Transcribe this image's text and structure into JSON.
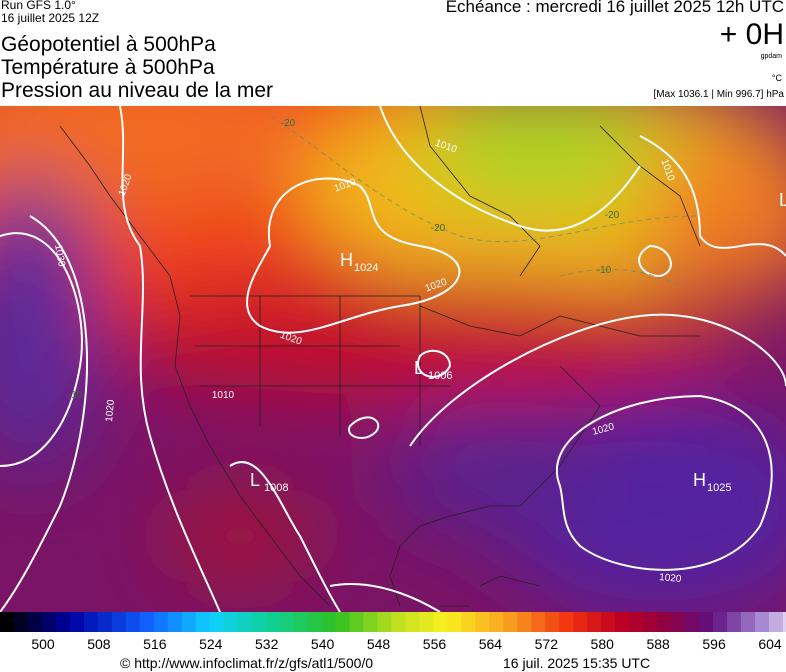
{
  "header": {
    "run": "Run GFS 1.0°",
    "date": "16 juillet 2025 12Z",
    "echeance": "Echéance : mercredi 16 juillet 2025 12h UTC",
    "lead": "+ 0H",
    "unit_geo": "gpdam",
    "unit_temp": "°C",
    "pressure_range": "[Max 1036.1 | Min 996.7] hPa"
  },
  "titles": [
    "Géopotentiel à 500hPa",
    "Température à 500hPa",
    "Pression au niveau de la mer"
  ],
  "centers": [
    {
      "kind": "H",
      "value": "1024"
    },
    {
      "kind": "L",
      "value": "1006"
    },
    {
      "kind": "L",
      "value": "1008"
    },
    {
      "kind": "H",
      "value": "1025"
    },
    {
      "kind": "L",
      "value": null
    }
  ],
  "isobar_labels": [
    "1020",
    "1010",
    "1030",
    "1020",
    "1020",
    "1020",
    "1010",
    "1020",
    "1020",
    "1010",
    "1010"
  ],
  "temperature_labels": [
    "-20",
    "-20",
    "-20",
    "-10",
    "-10"
  ],
  "colorbar": {
    "ticks": [
      500,
      508,
      516,
      524,
      532,
      540,
      548,
      556,
      564,
      572,
      580,
      588,
      596,
      604
    ]
  },
  "footer": {
    "source": "© http://www.infoclimat.fr/z/gfs/atl1/500/0",
    "generated": "16 juil. 2025 15:35 UTC"
  }
}
